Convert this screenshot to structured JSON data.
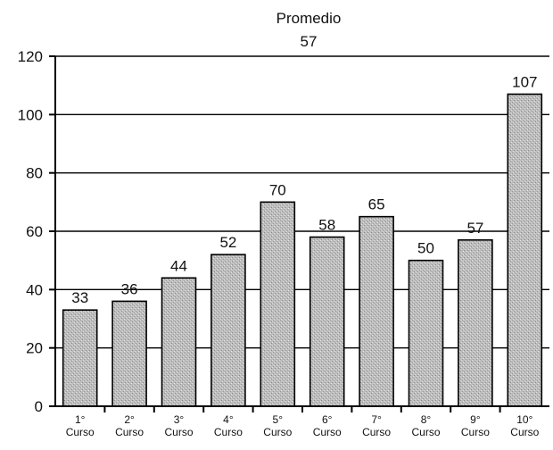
{
  "chart_data": {
    "type": "bar",
    "title": "Promedio",
    "subtitle": "57",
    "categories": [
      "1° Curso",
      "2° Curso",
      "3° Curso",
      "4° Curso",
      "5° Curso",
      "6° Curso",
      "7° Curso",
      "8° Curso",
      "9° Curso",
      "10° Curso"
    ],
    "category_lines": [
      [
        "1°",
        "Curso"
      ],
      [
        "2°",
        "Curso"
      ],
      [
        "3°",
        "Curso"
      ],
      [
        "4°",
        "Curso"
      ],
      [
        "5°",
        "Curso"
      ],
      [
        "6°",
        "Curso"
      ],
      [
        "7°",
        "Curso"
      ],
      [
        "8°",
        "Curso"
      ],
      [
        "9°",
        "Curso"
      ],
      [
        "10°",
        "Curso"
      ]
    ],
    "values": [
      33,
      36,
      44,
      52,
      70,
      58,
      65,
      50,
      57,
      107
    ],
    "ylim": [
      0,
      120
    ],
    "yticks": [
      0,
      20,
      40,
      60,
      80,
      100,
      120
    ],
    "xlabel": "",
    "ylabel": "",
    "grid": true,
    "bar_color": "#b8b8b8"
  }
}
